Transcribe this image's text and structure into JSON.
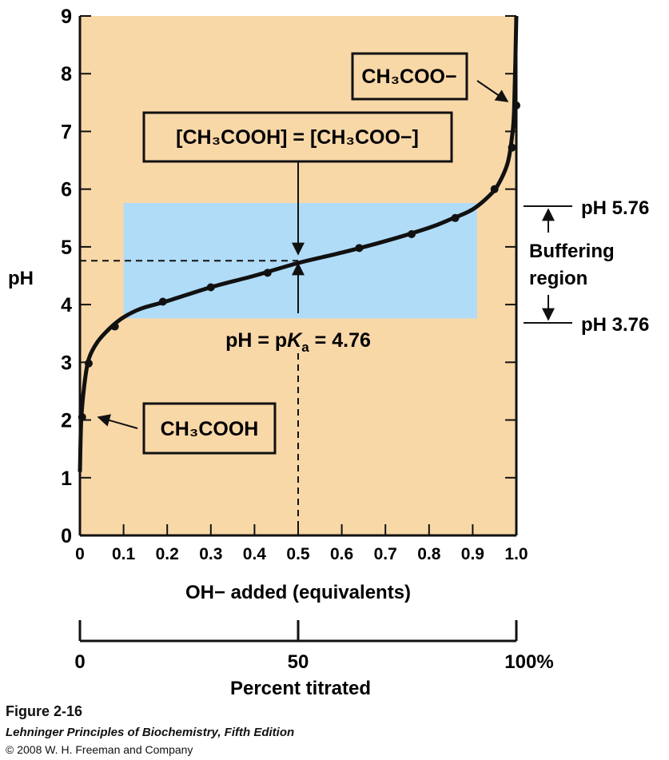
{
  "chart_data": {
    "type": "line",
    "title": "",
    "xlabel": "OH− added (equivalents)",
    "ylabel": "pH",
    "xlim": [
      0,
      1.0
    ],
    "ylim": [
      0,
      9
    ],
    "x_ticks": [
      "0",
      "0.1",
      "0.2",
      "0.3",
      "0.4",
      "0.5",
      "0.6",
      "0.7",
      "0.8",
      "0.9",
      "1.0"
    ],
    "y_ticks": [
      "0",
      "1",
      "2",
      "3",
      "4",
      "5",
      "6",
      "7",
      "8",
      "9"
    ],
    "series": [
      {
        "curve": [
          [
            0.0,
            1.1
          ],
          [
            0.003,
            2.0
          ],
          [
            0.01,
            2.6
          ],
          [
            0.02,
            3.05
          ],
          [
            0.04,
            3.35
          ],
          [
            0.07,
            3.6
          ],
          [
            0.1,
            3.78
          ],
          [
            0.14,
            3.93
          ],
          [
            0.2,
            4.06
          ],
          [
            0.3,
            4.3
          ],
          [
            0.4,
            4.5
          ],
          [
            0.5,
            4.72
          ],
          [
            0.6,
            4.9
          ],
          [
            0.7,
            5.1
          ],
          [
            0.8,
            5.33
          ],
          [
            0.85,
            5.48
          ],
          [
            0.9,
            5.65
          ],
          [
            0.94,
            5.9
          ],
          [
            0.96,
            6.1
          ],
          [
            0.98,
            6.45
          ],
          [
            0.99,
            6.9
          ],
          [
            0.995,
            7.4
          ],
          [
            1.0,
            9.0
          ]
        ],
        "points": [
          [
            0.005,
            2.05
          ],
          [
            0.02,
            2.98
          ],
          [
            0.08,
            3.62
          ],
          [
            0.19,
            4.05
          ],
          [
            0.3,
            4.3
          ],
          [
            0.43,
            4.55
          ],
          [
            0.64,
            4.98
          ],
          [
            0.76,
            5.22
          ],
          [
            0.86,
            5.5
          ],
          [
            0.95,
            6.0
          ],
          [
            0.99,
            6.72
          ],
          [
            1.0,
            7.45
          ]
        ]
      }
    ],
    "buffer_region": {
      "x_range": [
        0.1,
        0.91
      ],
      "y_range": [
        3.76,
        5.76
      ]
    },
    "pka_marker": {
      "x": 0.5,
      "y": 4.76
    },
    "annotations": {
      "equality_label": "[CH₃COOH] = [CH₃COO−]",
      "acid_label": "CH₃COOH",
      "base_label": "CH₃COO−",
      "pka_label_prefix": "pH = p",
      "pka_label_k": "K",
      "pka_label_sub": "a",
      "pka_label_suffix": " = 4.76",
      "buffer_upper": "pH 5.76",
      "buffer_lower": "pH 3.76",
      "buffer_label_line1": "Buffering",
      "buffer_label_line2": "region"
    },
    "secondary_axis": {
      "label": "Percent titrated",
      "ticks": [
        "0",
        "50",
        "100%"
      ],
      "range": [
        0,
        100
      ]
    },
    "grid": false,
    "colors": {
      "plot_background": "#F9D8A8",
      "buffer_region": "#B0DCF7",
      "curve": "#111111"
    }
  },
  "caption": {
    "title": "Figure 2-16",
    "book": "Lehninger Principles of Biochemistry, Fifth Edition",
    "copyright": "© 2008 W. H. Freeman and Company"
  }
}
